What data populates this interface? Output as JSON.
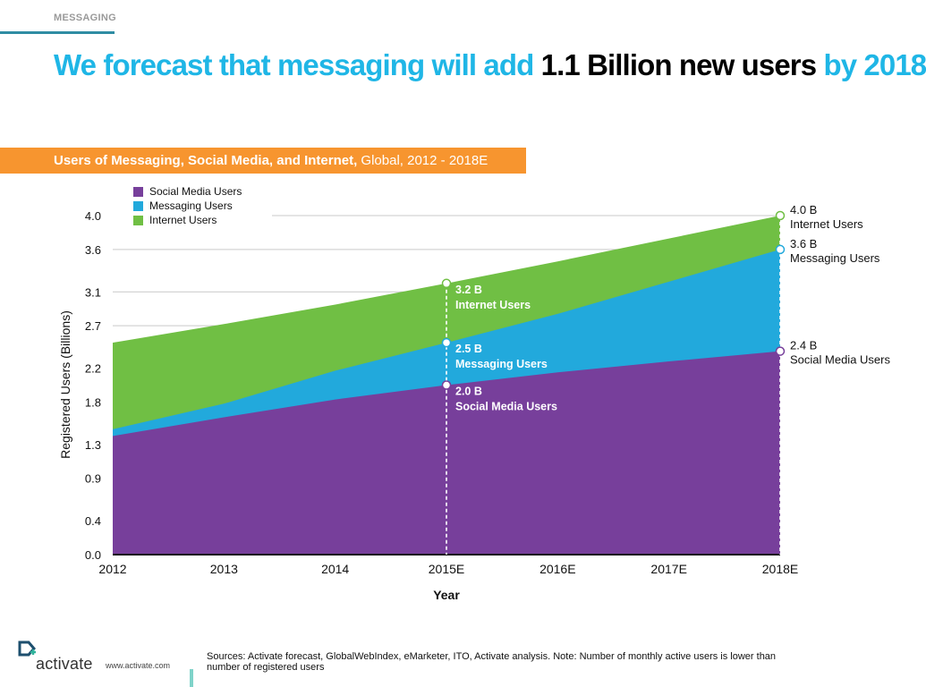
{
  "header": {
    "section": "MESSAGING",
    "headline_parts": [
      {
        "text": "We forecast that messaging will add ",
        "tone": "blue"
      },
      {
        "text": "1.1 Billion new users",
        "tone": "black"
      },
      {
        "text": " by 2018",
        "tone": "blue"
      }
    ]
  },
  "banner": {
    "title_strong": "Users of Messaging, Social Media, and Internet,",
    "title_rest": " Global, 2012 - 2018E"
  },
  "colors": {
    "social": "#773f9b",
    "messaging": "#22a9dc",
    "internet": "#70bf44",
    "title_blue": "#1fb6e6",
    "banner_orange": "#f7952f"
  },
  "chart_data": {
    "type": "area",
    "stacked": false,
    "categories": [
      "2012",
      "2013",
      "2014",
      "2015E",
      "2016E",
      "2017E",
      "2018E"
    ],
    "xlabel": "Year",
    "ylabel": "Registered Users (Billions)",
    "ylim": [
      0,
      4.0
    ],
    "yticks": [
      "0.0",
      "0.4",
      "0.9",
      "1.3",
      "1.8",
      "2.2",
      "2.7",
      "3.1",
      "3.6",
      "4.0"
    ],
    "grid": "partial horizontal",
    "legend_position": "top-left",
    "series": [
      {
        "key": "internet",
        "name": "Internet Users",
        "values": [
          2.5,
          2.72,
          2.95,
          3.2,
          3.46,
          3.73,
          4.0
        ]
      },
      {
        "key": "messaging",
        "name": "Messaging Users",
        "values": [
          1.48,
          1.78,
          2.17,
          2.5,
          2.84,
          3.22,
          3.6
        ]
      },
      {
        "key": "social",
        "name": "Social Media Users",
        "values": [
          1.4,
          1.62,
          1.83,
          2.0,
          2.15,
          2.28,
          2.4
        ]
      }
    ],
    "legend": [
      "Social Media Users",
      "Messaging Users",
      "Internet Users"
    ],
    "annotations": [
      {
        "category": "2015E",
        "value": 3.2,
        "series": "internet",
        "label": "3.2 B",
        "sub": "Internet Users",
        "style": "inside"
      },
      {
        "category": "2015E",
        "value": 2.5,
        "series": "messaging",
        "label": "2.5 B",
        "sub": "Messaging Users",
        "style": "inside"
      },
      {
        "category": "2015E",
        "value": 2.0,
        "series": "social",
        "label": "2.0 B",
        "sub": "Social Media Users",
        "style": "inside"
      },
      {
        "category": "2018E",
        "value": 4.0,
        "series": "internet",
        "label": "4.0 B",
        "sub": "Internet Users",
        "style": "outside"
      },
      {
        "category": "2018E",
        "value": 3.6,
        "series": "messaging",
        "label": "3.6 B",
        "sub": "Messaging Users",
        "style": "outside"
      },
      {
        "category": "2018E",
        "value": 2.4,
        "series": "social",
        "label": "2.4 B",
        "sub": "Social Media Users",
        "style": "outside"
      }
    ]
  },
  "footer": {
    "logo_text": "activate",
    "url": "www.activate.com",
    "sources": "Sources: Activate forecast, GlobalWebIndex, eMarketer, ITO, Activate analysis. Note: Number of monthly active users is lower than number of registered users"
  }
}
